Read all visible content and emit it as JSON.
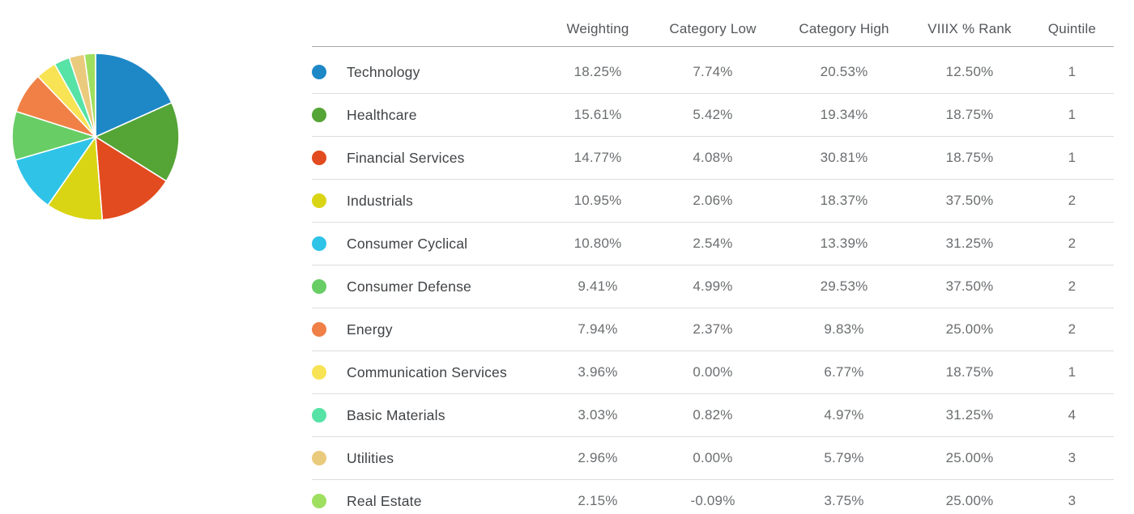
{
  "table": {
    "headers": [
      "",
      "Weighting",
      "Category Low",
      "Category High",
      "VIIIX % Rank",
      "Quintile"
    ]
  },
  "sectors": [
    {
      "name": "Technology",
      "weighting": "18.25%",
      "category_low": "7.74%",
      "category_high": "20.53%",
      "viiix_pct_rank": "12.50%",
      "quintile": "1"
    },
    {
      "name": "Healthcare",
      "weighting": "15.61%",
      "category_low": "5.42%",
      "category_high": "19.34%",
      "viiix_pct_rank": "18.75%",
      "quintile": "1"
    },
    {
      "name": "Financial Services",
      "weighting": "14.77%",
      "category_low": "4.08%",
      "category_high": "30.81%",
      "viiix_pct_rank": "18.75%",
      "quintile": "1"
    },
    {
      "name": "Industrials",
      "weighting": "10.95%",
      "category_low": "2.06%",
      "category_high": "18.37%",
      "viiix_pct_rank": "37.50%",
      "quintile": "2"
    },
    {
      "name": "Consumer Cyclical",
      "weighting": "10.80%",
      "category_low": "2.54%",
      "category_high": "13.39%",
      "viiix_pct_rank": "31.25%",
      "quintile": "2"
    },
    {
      "name": "Consumer Defense",
      "weighting": "9.41%",
      "category_low": "4.99%",
      "category_high": "29.53%",
      "viiix_pct_rank": "37.50%",
      "quintile": "2"
    },
    {
      "name": "Energy",
      "weighting": "7.94%",
      "category_low": "2.37%",
      "category_high": "9.83%",
      "viiix_pct_rank": "25.00%",
      "quintile": "2"
    },
    {
      "name": "Communication Services",
      "weighting": "3.96%",
      "category_low": "0.00%",
      "category_high": "6.77%",
      "viiix_pct_rank": "18.75%",
      "quintile": "1"
    },
    {
      "name": "Basic Materials",
      "weighting": "3.03%",
      "category_low": "0.82%",
      "category_high": "4.97%",
      "viiix_pct_rank": "31.25%",
      "quintile": "4"
    },
    {
      "name": "Utilities",
      "weighting": "2.96%",
      "category_low": "0.00%",
      "category_high": "5.79%",
      "viiix_pct_rank": "25.00%",
      "quintile": "3"
    },
    {
      "name": "Real Estate",
      "weighting": "2.15%",
      "category_low": "-0.09%",
      "category_high": "3.75%",
      "viiix_pct_rank": "25.00%",
      "quintile": "3"
    }
  ],
  "chart_data": {
    "type": "pie",
    "title": "",
    "categories": [
      "Technology",
      "Healthcare",
      "Financial Services",
      "Industrials",
      "Consumer Cyclical",
      "Consumer Defense",
      "Energy",
      "Communication Services",
      "Basic Materials",
      "Utilities",
      "Real Estate"
    ],
    "values": [
      18.25,
      15.61,
      14.77,
      10.95,
      10.8,
      9.41,
      7.94,
      3.96,
      3.03,
      2.96,
      2.15
    ],
    "colors": [
      "#1e88c7",
      "#55a436",
      "#e24b1f",
      "#d9d515",
      "#2fc3e8",
      "#67cd64",
      "#f08046",
      "#f7e353",
      "#57e2a6",
      "#eaca7c",
      "#9fdf5f"
    ],
    "start_angle_deg_from_12_oclock": 0,
    "direction": "clockwise",
    "slice_gap_stroke": "#ffffff",
    "legend_position": "table-right"
  }
}
